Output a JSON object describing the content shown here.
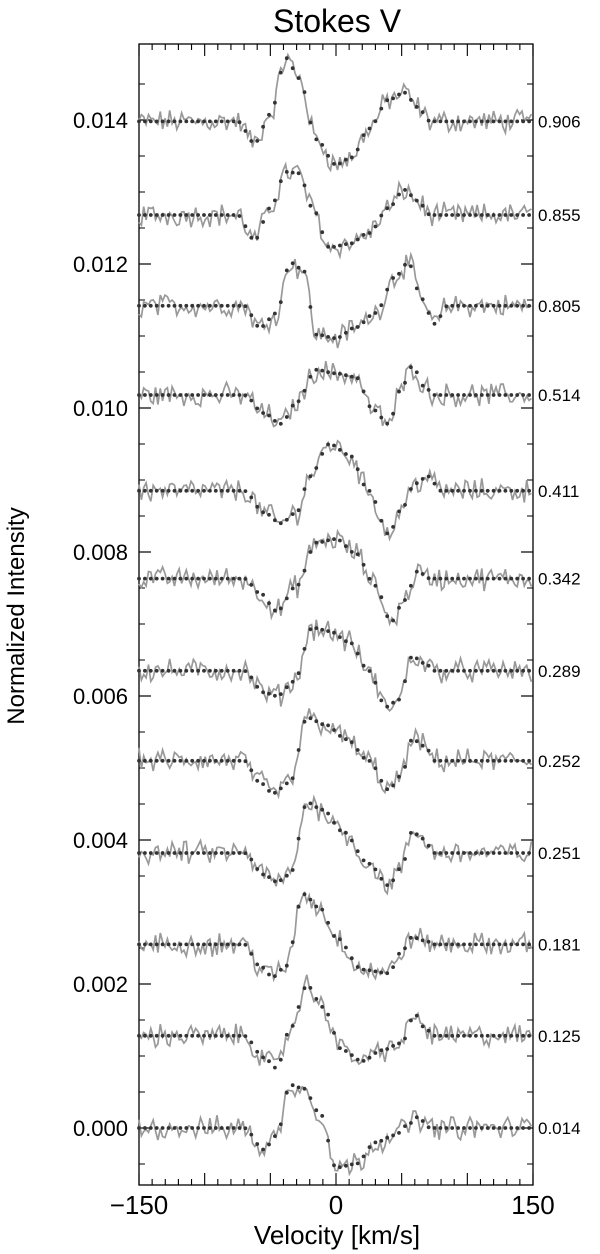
{
  "chart_data": {
    "type": "line",
    "title": "Stokes V",
    "xlabel": "Velocity [km/s]",
    "ylabel": "Normalized Intensity",
    "xlim": [
      -150,
      150
    ],
    "ylim": [
      -0.0007,
      0.015
    ],
    "x_ticks": [
      -150,
      0,
      150
    ],
    "x_tick_labels": [
      "−150",
      "0",
      "150"
    ],
    "y_ticks": [
      0.0,
      0.002,
      0.004,
      0.006,
      0.008,
      0.01,
      0.012,
      0.014
    ],
    "y_tick_labels": [
      "0.000",
      "0.002",
      "0.004",
      "0.006",
      "0.008",
      "0.010",
      "0.012",
      "0.014"
    ],
    "grid": false,
    "legend": "none",
    "colors": {
      "observed": "#999999",
      "model": "#333333"
    },
    "series": [
      {
        "phase": "0.906",
        "offset": 0.01398,
        "profile": [
          [
            -150,
            0
          ],
          [
            -75,
            0
          ],
          [
            -62,
            -0.0003
          ],
          [
            -50,
            0.0001
          ],
          [
            -38,
            0.00088
          ],
          [
            -28,
            0.0006
          ],
          [
            -15,
            -0.00025
          ],
          [
            0,
            -0.0006
          ],
          [
            12,
            -0.0005
          ],
          [
            25,
            -0.0001
          ],
          [
            40,
            0.0003
          ],
          [
            52,
            0.0004
          ],
          [
            62,
            0.0002
          ],
          [
            72,
            0
          ],
          [
            150,
            0
          ]
        ]
      },
      {
        "phase": "0.855",
        "offset": 0.01268,
        "profile": [
          [
            -150,
            0
          ],
          [
            -75,
            0
          ],
          [
            -62,
            -0.00035
          ],
          [
            -50,
            0.0001
          ],
          [
            -38,
            0.0006
          ],
          [
            -28,
            0.00058
          ],
          [
            -18,
            0.0001
          ],
          [
            -5,
            -0.00045
          ],
          [
            10,
            -0.0004
          ],
          [
            25,
            -0.00025
          ],
          [
            40,
            0.0001
          ],
          [
            52,
            0.00035
          ],
          [
            62,
            0.0002
          ],
          [
            72,
            0
          ],
          [
            150,
            0
          ]
        ]
      },
      {
        "phase": "0.805",
        "offset": 0.01142,
        "profile": [
          [
            -150,
            0
          ],
          [
            -70,
            0
          ],
          [
            -58,
            -0.0003
          ],
          [
            -45,
            -0.0001
          ],
          [
            -35,
            0.0006
          ],
          [
            -25,
            0.0005
          ],
          [
            -15,
            -0.0004
          ],
          [
            0,
            -0.00045
          ],
          [
            15,
            -0.0003
          ],
          [
            30,
            -0.0001
          ],
          [
            45,
            0.0004
          ],
          [
            55,
            0.0006
          ],
          [
            65,
            0.0001
          ],
          [
            75,
            -0.00025
          ],
          [
            85,
            0
          ],
          [
            150,
            0
          ]
        ]
      },
      {
        "phase": "0.514",
        "offset": 0.01018,
        "profile": [
          [
            -150,
            0
          ],
          [
            -70,
            0
          ],
          [
            -55,
            -0.00025
          ],
          [
            -42,
            -0.0004
          ],
          [
            -30,
            -0.0001
          ],
          [
            -15,
            0.00035
          ],
          [
            0,
            0.0003
          ],
          [
            15,
            0.00025
          ],
          [
            28,
            -0.0002
          ],
          [
            40,
            -0.0004
          ],
          [
            50,
            0.0001
          ],
          [
            58,
            0.0004
          ],
          [
            68,
            0.0001
          ],
          [
            75,
            0
          ],
          [
            150,
            0
          ]
        ]
      },
      {
        "phase": "0.411",
        "offset": 0.00885,
        "profile": [
          [
            -150,
            0
          ],
          [
            -70,
            0
          ],
          [
            -55,
            -0.0003
          ],
          [
            -42,
            -0.00045
          ],
          [
            -30,
            -0.0003
          ],
          [
            -20,
            0.0002
          ],
          [
            -5,
            0.00065
          ],
          [
            10,
            0.0005
          ],
          [
            25,
            0.0
          ],
          [
            40,
            -0.0006
          ],
          [
            50,
            -0.00025
          ],
          [
            60,
            0.0001
          ],
          [
            70,
            0.0002
          ],
          [
            80,
            0
          ],
          [
            150,
            0
          ]
        ]
      },
      {
        "phase": "0.342",
        "offset": 0.00763,
        "profile": [
          [
            -150,
            0
          ],
          [
            -70,
            0
          ],
          [
            -58,
            -0.0002
          ],
          [
            -45,
            -0.00045
          ],
          [
            -30,
            -0.0001
          ],
          [
            -15,
            0.0005
          ],
          [
            0,
            0.00055
          ],
          [
            15,
            0.00035
          ],
          [
            30,
            -0.0001
          ],
          [
            42,
            -0.0006
          ],
          [
            52,
            -0.0003
          ],
          [
            62,
            0.0001
          ],
          [
            72,
            0
          ],
          [
            150,
            0
          ]
        ]
      },
      {
        "phase": "0.289",
        "offset": 0.00635,
        "profile": [
          [
            -150,
            0
          ],
          [
            -70,
            0
          ],
          [
            -55,
            -0.0003
          ],
          [
            -45,
            -0.00035
          ],
          [
            -32,
            -0.00015
          ],
          [
            -18,
            0.0006
          ],
          [
            -5,
            0.00055
          ],
          [
            10,
            0.0004
          ],
          [
            25,
            0.0
          ],
          [
            38,
            -0.0005
          ],
          [
            48,
            -0.0004
          ],
          [
            58,
            0.0002
          ],
          [
            68,
            0.0001
          ],
          [
            75,
            0
          ],
          [
            150,
            0
          ]
        ]
      },
      {
        "phase": "0.252",
        "offset": 0.0051,
        "profile": [
          [
            -150,
            0
          ],
          [
            -70,
            0
          ],
          [
            -58,
            -0.0003
          ],
          [
            -48,
            -0.00045
          ],
          [
            -35,
            -0.0003
          ],
          [
            -22,
            0.0006
          ],
          [
            -8,
            0.0005
          ],
          [
            8,
            0.0003
          ],
          [
            25,
            0.0
          ],
          [
            40,
            -0.0004
          ],
          [
            50,
            -0.0002
          ],
          [
            58,
            0.0003
          ],
          [
            68,
            0.0002
          ],
          [
            75,
            0
          ],
          [
            150,
            0
          ]
        ]
      },
      {
        "phase": "0.251",
        "offset": 0.00382,
        "profile": [
          [
            -150,
            0
          ],
          [
            -70,
            0
          ],
          [
            -55,
            -0.0003
          ],
          [
            -45,
            -0.0004
          ],
          [
            -35,
            -0.0003
          ],
          [
            -22,
            0.0007
          ],
          [
            -10,
            0.0006
          ],
          [
            5,
            0.0003
          ],
          [
            25,
            -0.00015
          ],
          [
            40,
            -0.00045
          ],
          [
            50,
            -0.0002
          ],
          [
            58,
            0.0003
          ],
          [
            66,
            0.0002
          ],
          [
            75,
            0
          ],
          [
            150,
            0
          ]
        ]
      },
      {
        "phase": "0.181",
        "offset": 0.00255,
        "profile": [
          [
            -150,
            0
          ],
          [
            -70,
            0
          ],
          [
            -58,
            -0.0003
          ],
          [
            -48,
            -0.00045
          ],
          [
            -38,
            -0.0003
          ],
          [
            -25,
            0.0007
          ],
          [
            -12,
            0.0005
          ],
          [
            0,
            0.0001
          ],
          [
            20,
            -0.00035
          ],
          [
            40,
            -0.0004
          ],
          [
            50,
            -0.0001
          ],
          [
            58,
            0.0001
          ],
          [
            68,
            5e-05
          ],
          [
            75,
            0
          ],
          [
            150,
            0
          ]
        ]
      },
      {
        "phase": "0.125",
        "offset": 0.00128,
        "profile": [
          [
            -150,
            0
          ],
          [
            -70,
            0
          ],
          [
            -55,
            -0.0003
          ],
          [
            -45,
            -0.00045
          ],
          [
            -35,
            0.0001
          ],
          [
            -22,
            0.0007
          ],
          [
            -10,
            0.0004
          ],
          [
            5,
            -0.0002
          ],
          [
            20,
            -0.00035
          ],
          [
            35,
            -0.0002
          ],
          [
            50,
            -0.0001
          ],
          [
            60,
            0.0003
          ],
          [
            68,
            0.0001
          ],
          [
            75,
            0
          ],
          [
            150,
            0
          ]
        ]
      },
      {
        "phase": "0.014",
        "offset": 0.0,
        "profile": [
          [
            -150,
            0
          ],
          [
            -70,
            0
          ],
          [
            -55,
            -0.0003
          ],
          [
            -45,
            -0.0001
          ],
          [
            -35,
            0.0006
          ],
          [
            -25,
            0.00055
          ],
          [
            -12,
            0.0002
          ],
          [
            0,
            -0.00055
          ],
          [
            15,
            -0.0005
          ],
          [
            30,
            -0.0002
          ],
          [
            45,
            -0.0001
          ],
          [
            55,
            5e-05
          ],
          [
            62,
            0.00015
          ],
          [
            72,
            0
          ],
          [
            150,
            0
          ]
        ]
      }
    ]
  }
}
